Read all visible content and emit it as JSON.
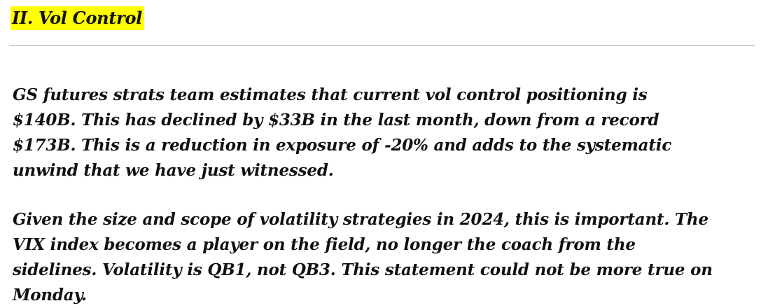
{
  "section": {
    "heading": "II. Vol Control",
    "highlight_color": "#ffff00"
  },
  "paragraphs": [
    {
      "lines": [
        "GS futures strats team estimates that current vol control positioning is",
        "$140B. This has declined by $33B in the last month, down from a record",
        "$173B. This is a reduction in exposure of -20% and adds to the systematic",
        "unwind that we have just witnessed."
      ]
    },
    {
      "lines": [
        "Given the size and scope of volatility strategies in 2024, this is important. The",
        "VIX index becomes a player on the field, no longer the coach from the",
        "sidelines. Volatility is QB1, not QB3. This statement could not be more true on",
        "Monday."
      ]
    }
  ]
}
